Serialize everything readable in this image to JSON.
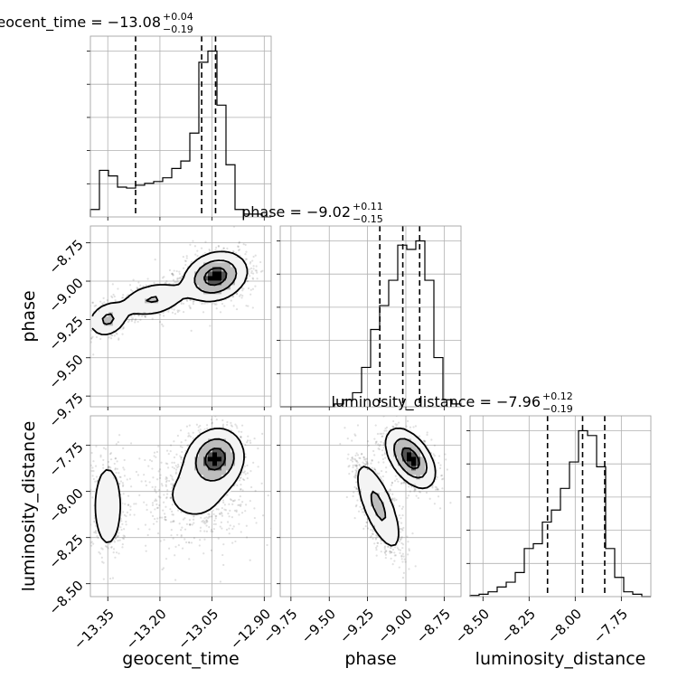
{
  "chart_data": {
    "type": "corner",
    "parameters": [
      {
        "name": "geocent_time",
        "median": -13.08,
        "title_main": "geocent_time = −13.08",
        "title_sup": "+0.04",
        "title_sub": "−0.19",
        "quantiles": [
          -13.27,
          -13.08,
          -13.04
        ],
        "range": [
          -13.4,
          -12.88
        ],
        "ticks": [
          -13.35,
          -13.2,
          -13.05,
          -12.9
        ],
        "tick_labels": [
          "−13.35",
          "−13.20",
          "−13.05",
          "−12.90"
        ],
        "hist": {
          "edges_start": -13.4,
          "bin_width": 0.026,
          "counts": [
            8,
            50,
            44,
            32,
            31,
            34,
            36,
            38,
            42,
            52,
            60,
            90,
            166,
            178,
            120,
            56,
            8,
            3,
            3,
            0
          ]
        }
      },
      {
        "name": "phase",
        "median": -9.02,
        "title_main": "phase = −9.02",
        "title_sup": "+0.11",
        "title_sub": "−0.15",
        "quantiles": [
          -9.17,
          -9.02,
          -8.91
        ],
        "range": [
          -9.82,
          -8.64
        ],
        "ticks": [
          -9.75,
          -9.5,
          -9.25,
          -9.0,
          -8.75
        ],
        "tick_labels": [
          "−9.75",
          "−9.50",
          "−9.25",
          "−9.00",
          "−8.75"
        ],
        "hist": {
          "edges_start": -9.82,
          "bin_width": 0.059,
          "counts": [
            0,
            0,
            0,
            0,
            0,
            0,
            2,
            5,
            10,
            28,
            55,
            72,
            90,
            115,
            112,
            118,
            90,
            35,
            5,
            2
          ]
        }
      },
      {
        "name": "luminosity_distance",
        "median": -7.96,
        "title_main": "luminosity_distance = −7.96",
        "title_sup": "+0.12",
        "title_sub": "−0.19",
        "quantiles": [
          -8.15,
          -7.96,
          -7.84
        ],
        "range": [
          -8.57,
          -7.59
        ],
        "ticks": [
          -8.5,
          -8.25,
          -8.0,
          -7.75
        ],
        "tick_labels": [
          "−8.50",
          "−8.25",
          "−8.00",
          "−7.75"
        ],
        "hist": {
          "edges_start": -8.57,
          "bin_width": 0.049,
          "counts": [
            1,
            2,
            4,
            8,
            12,
            20,
            40,
            44,
            62,
            72,
            90,
            112,
            138,
            134,
            108,
            40,
            16,
            4,
            2,
            0
          ]
        }
      }
    ],
    "pairs": [
      {
        "x": "geocent_time",
        "y": "phase",
        "modes": [
          {
            "cx": -13.04,
            "cy": -8.97,
            "sx": 0.045,
            "sy": 0.08,
            "rho": 0.2,
            "weight": 0.62
          },
          {
            "cx": -13.22,
            "cy": -9.12,
            "sx": 0.05,
            "sy": 0.06,
            "rho": 0.3,
            "weight": 0.23
          },
          {
            "cx": -13.35,
            "cy": -9.25,
            "sx": 0.03,
            "sy": 0.06,
            "rho": 0.2,
            "weight": 0.15
          }
        ]
      },
      {
        "x": "geocent_time",
        "y": "luminosity_distance",
        "modes": [
          {
            "cx": -13.04,
            "cy": -7.82,
            "sx": 0.04,
            "sy": 0.08,
            "rho": 0.1,
            "weight": 0.5
          },
          {
            "cx": -13.1,
            "cy": -8.02,
            "sx": 0.08,
            "sy": 0.13,
            "rho": 0.0,
            "weight": 0.3
          },
          {
            "cx": -13.35,
            "cy": -8.08,
            "sx": 0.025,
            "sy": 0.14,
            "rho": 0.0,
            "weight": 0.2
          }
        ]
      },
      {
        "x": "phase",
        "y": "luminosity_distance",
        "modes": [
          {
            "cx": -8.97,
            "cy": -7.82,
            "sx": 0.08,
            "sy": 0.08,
            "rho": -0.5,
            "weight": 0.55
          },
          {
            "cx": -9.18,
            "cy": -8.08,
            "sx": 0.08,
            "sy": 0.13,
            "rho": -0.7,
            "weight": 0.45
          }
        ]
      }
    ]
  }
}
